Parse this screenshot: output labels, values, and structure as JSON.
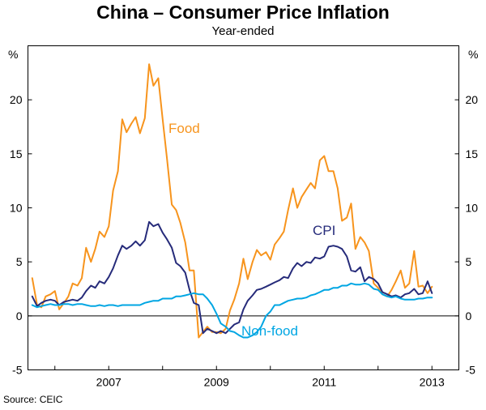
{
  "chart_data": {
    "type": "line",
    "title": "China – Consumer Price Inflation",
    "subtitle": "Year-ended",
    "source": "Source: CEIC",
    "ylabel_left": "%",
    "ylabel_right": "%",
    "ylim": [
      -5,
      25
    ],
    "xlim": [
      2005.5,
      2013.5
    ],
    "yticks": [
      -5,
      0,
      5,
      10,
      15,
      20
    ],
    "xticks": [
      2007,
      2009,
      2011,
      2013
    ],
    "xtick_labels": [
      "2007",
      "2009",
      "2011",
      "2013"
    ],
    "grid": false,
    "zero_line": true,
    "series": [
      {
        "name": "Food",
        "label": "Food",
        "color": "#f7941d",
        "x": [
          2005.58,
          2005.67,
          2005.75,
          2005.83,
          2005.92,
          2006.0,
          2006.08,
          2006.17,
          2006.25,
          2006.33,
          2006.42,
          2006.5,
          2006.58,
          2006.67,
          2006.75,
          2006.83,
          2006.92,
          2007.0,
          2007.08,
          2007.17,
          2007.25,
          2007.33,
          2007.42,
          2007.5,
          2007.58,
          2007.67,
          2007.75,
          2007.83,
          2007.92,
          2008.0,
          2008.08,
          2008.17,
          2008.25,
          2008.33,
          2008.42,
          2008.5,
          2008.58,
          2008.67,
          2008.75,
          2008.83,
          2008.92,
          2009.0,
          2009.08,
          2009.17,
          2009.25,
          2009.33,
          2009.42,
          2009.5,
          2009.58,
          2009.67,
          2009.75,
          2009.83,
          2009.92,
          2010.0,
          2010.08,
          2010.17,
          2010.25,
          2010.33,
          2010.42,
          2010.5,
          2010.58,
          2010.67,
          2010.75,
          2010.83,
          2010.92,
          2011.0,
          2011.08,
          2011.17,
          2011.25,
          2011.33,
          2011.42,
          2011.5,
          2011.58,
          2011.67,
          2011.75,
          2011.83,
          2011.92,
          2012.0,
          2012.08,
          2012.17,
          2012.25,
          2012.33,
          2012.42,
          2012.5,
          2012.58,
          2012.67,
          2012.75,
          2012.83,
          2012.92,
          2013.0
        ],
        "y": [
          3.5,
          1.0,
          0.8,
          1.8,
          2.0,
          2.3,
          0.6,
          1.2,
          1.8,
          3.0,
          2.8,
          3.5,
          6.3,
          5.0,
          6.2,
          7.8,
          7.3,
          8.3,
          11.6,
          13.4,
          18.2,
          17.0,
          17.8,
          18.4,
          16.9,
          18.3,
          23.3,
          21.3,
          22.0,
          18.2,
          14.6,
          10.3,
          9.8,
          8.6,
          6.8,
          4.2,
          4.2,
          -2.0,
          -1.5,
          -1.0,
          -1.5,
          -1.5,
          -1.6,
          -1.2,
          0.5,
          1.5,
          3.0,
          5.3,
          3.4,
          5.0,
          6.1,
          5.6,
          5.9,
          5.2,
          6.6,
          7.2,
          7.8,
          9.8,
          11.8,
          10.0,
          11.0,
          11.7,
          12.3,
          11.8,
          14.4,
          14.8,
          13.4,
          13.4,
          11.8,
          8.8,
          9.1,
          10.4,
          6.2,
          7.3,
          6.8,
          6.0,
          3.0,
          2.6,
          2.0,
          1.8,
          2.4,
          3.2,
          4.2,
          2.6,
          3.0,
          6.0,
          2.7,
          2.8,
          2.1,
          2.7
        ]
      },
      {
        "name": "CPI",
        "label": "CPI",
        "color": "#262b7a",
        "x": [
          2005.58,
          2005.67,
          2005.75,
          2005.83,
          2005.92,
          2006.0,
          2006.08,
          2006.17,
          2006.25,
          2006.33,
          2006.42,
          2006.5,
          2006.58,
          2006.67,
          2006.75,
          2006.83,
          2006.92,
          2007.0,
          2007.08,
          2007.17,
          2007.25,
          2007.33,
          2007.42,
          2007.5,
          2007.58,
          2007.67,
          2007.75,
          2007.83,
          2007.92,
          2008.0,
          2008.08,
          2008.17,
          2008.25,
          2008.33,
          2008.42,
          2008.5,
          2008.58,
          2008.67,
          2008.75,
          2008.83,
          2008.92,
          2009.0,
          2009.08,
          2009.17,
          2009.25,
          2009.33,
          2009.42,
          2009.5,
          2009.58,
          2009.67,
          2009.75,
          2009.83,
          2009.92,
          2010.0,
          2010.08,
          2010.17,
          2010.25,
          2010.33,
          2010.42,
          2010.5,
          2010.58,
          2010.67,
          2010.75,
          2010.83,
          2010.92,
          2011.0,
          2011.08,
          2011.17,
          2011.25,
          2011.33,
          2011.42,
          2011.5,
          2011.58,
          2011.67,
          2011.75,
          2011.83,
          2011.92,
          2012.0,
          2012.08,
          2012.17,
          2012.25,
          2012.33,
          2012.42,
          2012.5,
          2012.58,
          2012.67,
          2012.75,
          2012.83,
          2012.92,
          2013.0
        ],
        "y": [
          1.8,
          0.9,
          1.2,
          1.4,
          1.5,
          1.4,
          1.0,
          1.3,
          1.4,
          1.5,
          1.4,
          1.7,
          2.3,
          2.8,
          2.6,
          3.2,
          3.0,
          3.6,
          4.4,
          5.6,
          6.5,
          6.2,
          6.5,
          6.9,
          6.5,
          7.0,
          8.7,
          8.3,
          8.5,
          7.7,
          7.1,
          6.3,
          4.9,
          4.6,
          4.0,
          2.4,
          1.2,
          1.0,
          -1.6,
          -1.2,
          -1.4,
          -1.6,
          -1.4,
          -1.6,
          -1.2,
          -0.8,
          -0.6,
          0.6,
          1.4,
          1.9,
          2.4,
          2.5,
          2.7,
          2.9,
          3.1,
          3.3,
          3.6,
          3.5,
          4.4,
          4.9,
          4.6,
          5.0,
          4.9,
          5.4,
          5.3,
          5.5,
          6.4,
          6.5,
          6.4,
          6.2,
          5.5,
          4.2,
          4.1,
          4.5,
          3.2,
          3.6,
          3.4,
          3.0,
          2.2,
          2.0,
          1.8,
          1.9,
          1.7,
          2.0,
          2.1,
          2.5,
          2.0,
          2.1,
          3.2,
          2.1
        ]
      },
      {
        "name": "Non-food",
        "label": "Non-food",
        "color": "#00a6e3",
        "x": [
          2005.58,
          2005.67,
          2005.75,
          2005.83,
          2005.92,
          2006.0,
          2006.08,
          2006.17,
          2006.25,
          2006.33,
          2006.42,
          2006.5,
          2006.58,
          2006.67,
          2006.75,
          2006.83,
          2006.92,
          2007.0,
          2007.08,
          2007.17,
          2007.25,
          2007.33,
          2007.42,
          2007.5,
          2007.58,
          2007.67,
          2007.75,
          2007.83,
          2007.92,
          2008.0,
          2008.08,
          2008.17,
          2008.25,
          2008.33,
          2008.42,
          2008.5,
          2008.58,
          2008.67,
          2008.75,
          2008.83,
          2008.92,
          2009.0,
          2009.08,
          2009.17,
          2009.25,
          2009.33,
          2009.42,
          2009.5,
          2009.58,
          2009.67,
          2009.75,
          2009.83,
          2009.92,
          2010.0,
          2010.08,
          2010.17,
          2010.25,
          2010.33,
          2010.42,
          2010.5,
          2010.58,
          2010.67,
          2010.75,
          2010.83,
          2010.92,
          2011.0,
          2011.08,
          2011.17,
          2011.25,
          2011.33,
          2011.42,
          2011.5,
          2011.58,
          2011.67,
          2011.75,
          2011.83,
          2011.92,
          2012.0,
          2012.08,
          2012.17,
          2012.25,
          2012.33,
          2012.42,
          2012.5,
          2012.58,
          2012.67,
          2012.75,
          2012.83,
          2012.92,
          2013.0
        ],
        "y": [
          1.0,
          0.8,
          0.9,
          1.0,
          1.1,
          1.0,
          1.0,
          1.1,
          1.1,
          1.0,
          1.1,
          1.1,
          1.0,
          0.9,
          0.9,
          1.0,
          0.9,
          1.0,
          1.0,
          0.9,
          1.0,
          1.0,
          1.0,
          1.0,
          1.0,
          1.2,
          1.3,
          1.4,
          1.4,
          1.6,
          1.6,
          1.6,
          1.8,
          1.8,
          1.9,
          2.0,
          2.1,
          2.0,
          2.0,
          1.6,
          1.0,
          0.2,
          -0.7,
          -1.0,
          -1.4,
          -1.5,
          -1.8,
          -2.0,
          -2.0,
          -1.8,
          -1.5,
          -1.0,
          0.0,
          0.4,
          1.0,
          1.0,
          1.2,
          1.4,
          1.5,
          1.6,
          1.6,
          1.7,
          1.9,
          2.0,
          2.2,
          2.4,
          2.4,
          2.6,
          2.6,
          2.8,
          2.8,
          3.0,
          2.9,
          2.9,
          3.0,
          2.9,
          2.5,
          2.4,
          2.0,
          1.8,
          1.7,
          1.8,
          1.6,
          1.5,
          1.5,
          1.5,
          1.6,
          1.6,
          1.7,
          1.7
        ]
      }
    ]
  }
}
